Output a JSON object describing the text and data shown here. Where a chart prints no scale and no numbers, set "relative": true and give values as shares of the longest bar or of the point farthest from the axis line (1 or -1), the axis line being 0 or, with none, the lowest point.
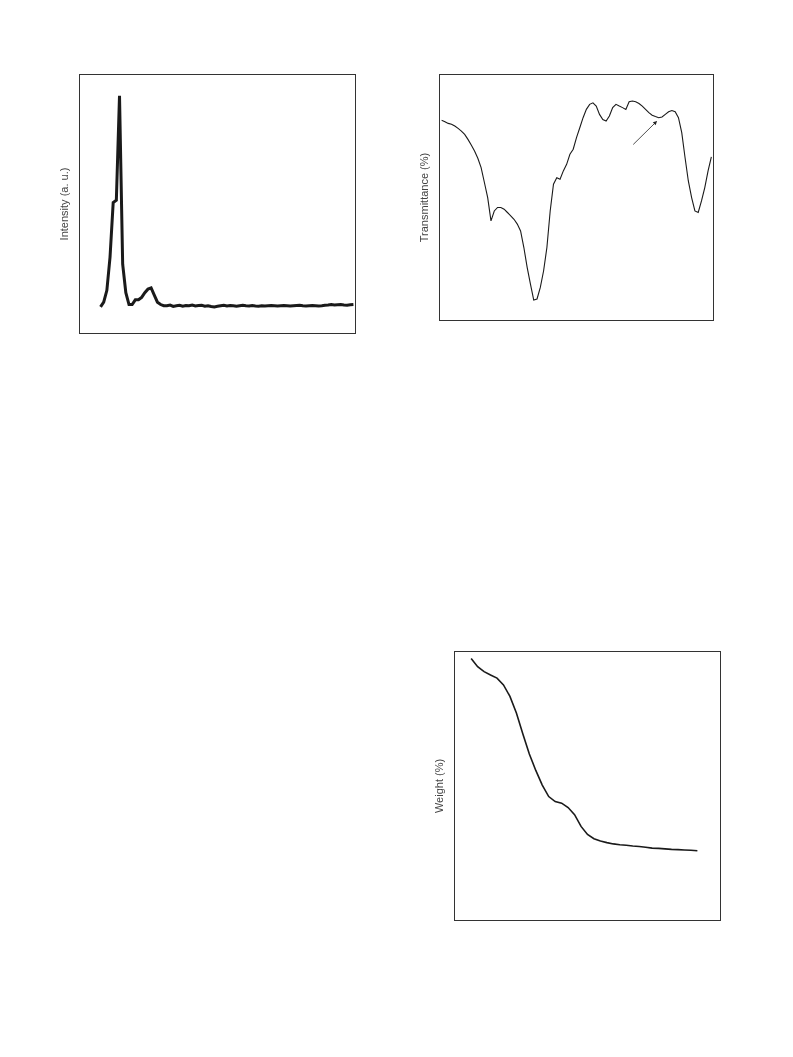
{
  "chart_data": [
    {
      "type": "line",
      "ylabel": "Intensity (a. u.)",
      "relative": true,
      "tick_labels": false,
      "categories": [
        null,
        null,
        null,
        null,
        null,
        null,
        null,
        null,
        null,
        null,
        null,
        null,
        null,
        null,
        null,
        null,
        null,
        null,
        null,
        null,
        null,
        null,
        null,
        null,
        null,
        null,
        null,
        null,
        null,
        null,
        null,
        null,
        null,
        null,
        null,
        null,
        null,
        null,
        null,
        null,
        null,
        null,
        null,
        null,
        null,
        null,
        null,
        null,
        null,
        null,
        null,
        null,
        null,
        null,
        null,
        null,
        null,
        null,
        null,
        null,
        null,
        null,
        null,
        null,
        null,
        null,
        null,
        null,
        null,
        null,
        null,
        null,
        null,
        null,
        null,
        null,
        null,
        null,
        null,
        null,
        null,
        null,
        null,
        null,
        null,
        null,
        null
      ],
      "series": [
        {
          "color": "#1a1a1a",
          "values": [
            null,
            null,
            null,
            null,
            null,
            null,
            0.11,
            0.13,
            0.18,
            0.32,
            0.55,
            0.56,
            1.0,
            0.29,
            0.17,
            0.12,
            0.12,
            0.14,
            0.14,
            0.15,
            0.17,
            0.185,
            0.19,
            0.16,
            0.13,
            0.12,
            0.115,
            0.115,
            0.118,
            0.112,
            0.115,
            0.117,
            0.113,
            0.116,
            0.115,
            0.118,
            0.114,
            0.116,
            0.117,
            0.113,
            0.115,
            0.112,
            0.11,
            0.113,
            0.115,
            0.117,
            0.114,
            0.116,
            0.115,
            0.113,
            0.115,
            0.117,
            0.115,
            0.114,
            0.116,
            0.114,
            0.113,
            0.115,
            0.114,
            0.115,
            0.116,
            0.115,
            0.114,
            0.115,
            0.116,
            0.115,
            0.114,
            0.115,
            0.116,
            0.117,
            0.115,
            0.114,
            0.115,
            0.116,
            0.115,
            0.114,
            0.115,
            0.117,
            0.118,
            0.12,
            0.118,
            0.119,
            0.12,
            0.118,
            0.117,
            0.119,
            0.12
          ]
        }
      ]
    },
    {
      "type": "line",
      "ylabel": "Transmittance (%)",
      "relative": true,
      "tick_labels": false,
      "categories": [
        null,
        null,
        null,
        null,
        null,
        null,
        null,
        null,
        null,
        null,
        null,
        null,
        null,
        null,
        null,
        null,
        null,
        null,
        null,
        null,
        null,
        null,
        null,
        null,
        null,
        null,
        null,
        null,
        null,
        null,
        null,
        null,
        null,
        null,
        null,
        null,
        null,
        null,
        null,
        null,
        null,
        null,
        null,
        null,
        null,
        null,
        null,
        null,
        null,
        null,
        null,
        null,
        null,
        null,
        null,
        null,
        null,
        null,
        null,
        null,
        null,
        null,
        null,
        null,
        null,
        null,
        null,
        null,
        null,
        null,
        null,
        null,
        null,
        null,
        null,
        null,
        null,
        null,
        null,
        null,
        null,
        null,
        null
      ],
      "series": [
        {
          "color": "#1a1a1a",
          "values": [
            0.912,
            0.906,
            0.898,
            0.894,
            0.886,
            0.875,
            0.863,
            0.848,
            0.825,
            0.799,
            0.772,
            0.739,
            0.696,
            0.628,
            0.559,
            0.453,
            0.498,
            0.514,
            0.514,
            0.506,
            0.491,
            0.476,
            0.46,
            0.438,
            0.407,
            0.331,
            0.24,
            0.164,
            0.091,
            0.096,
            0.149,
            0.225,
            0.331,
            0.498,
            0.62,
            0.65,
            0.643,
            0.681,
            0.711,
            0.757,
            0.78,
            0.833,
            0.878,
            0.924,
            0.962,
            0.985,
            0.992,
            0.977,
            0.939,
            0.916,
            0.909,
            0.932,
            0.97,
            0.985,
            0.977,
            0.97,
            0.962,
            0.997,
            1.0,
            0.997,
            0.989,
            0.977,
            0.962,
            0.947,
            0.935,
            0.929,
            0.924,
            0.927,
            0.939,
            0.951,
            0.957,
            0.951,
            0.924,
            0.856,
            0.742,
            0.635,
            0.559,
            0.498,
            0.491,
            0.544,
            0.605,
            0.681,
            0.745
          ]
        }
      ]
    },
    {
      "type": "line",
      "ylabel": "Weight (%)",
      "relative": true,
      "tick_labels": false,
      "categories": [
        null,
        null,
        null,
        null,
        null,
        null,
        null,
        null,
        null,
        null,
        null,
        null,
        null,
        null,
        null,
        null,
        null,
        null,
        null,
        null,
        null,
        null,
        null,
        null,
        null,
        null,
        null,
        null,
        null,
        null,
        null,
        null,
        null,
        null,
        null,
        null,
        null,
        null,
        null,
        null,
        null
      ],
      "series": [
        {
          "color": "#1a1a1a",
          "values": [
            null,
            null,
            1.0,
            0.969,
            0.95,
            0.937,
            0.925,
            0.899,
            0.855,
            0.792,
            0.711,
            0.635,
            0.572,
            0.516,
            0.472,
            0.453,
            0.447,
            0.43,
            0.403,
            0.358,
            0.327,
            0.311,
            0.302,
            0.296,
            0.291,
            0.288,
            0.286,
            0.283,
            0.281,
            0.278,
            0.275,
            0.274,
            0.272,
            0.27,
            0.269,
            0.268,
            0.267,
            0.265,
            null,
            null,
            null
          ]
        }
      ]
    }
  ]
}
